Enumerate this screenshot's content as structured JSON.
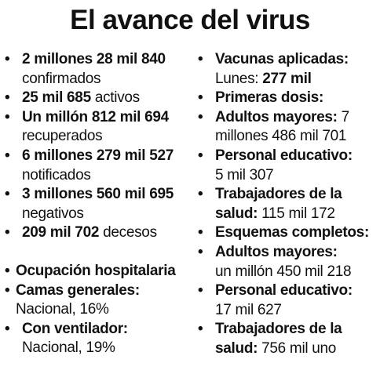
{
  "title": "El avance del virus",
  "left": {
    "stats": [
      {
        "bold": "2 millones 28 mil 840",
        "text": " confirmados"
      },
      {
        "bold": "25 mil 685",
        "text": " activos"
      },
      {
        "bold": "Un millón 812 mil 694",
        "text": " recuperados"
      },
      {
        "bold": "6 millones 279 mil 527",
        "text": " notificados"
      },
      {
        "bold": "3 millones 560 mil 695",
        "text": " negativos"
      },
      {
        "bold": "209 mil 702",
        "text": " decesos"
      }
    ],
    "occupancy": {
      "heading": "Ocupación hospitalaria",
      "general_beds_label": "Camas generales:",
      "general_beds_value": "Nacional, 16%",
      "ventilator_label": "Con ventilador:",
      "ventilator_value": "Nacional, 19%"
    }
  },
  "right": {
    "applied_label": "Vacunas aplicadas:",
    "applied_day": "Lunes: ",
    "applied_value": "277 mil",
    "first_doses_heading": "Primeras dosis:",
    "first_doses": [
      {
        "label": "Adultos mayores:",
        "value": " 7 millones 486 mil 701"
      },
      {
        "label": "Personal educativo:",
        "value": " 5 mil 307"
      },
      {
        "label": "Trabajadores de la salud:",
        "value": " 115 mil 172"
      }
    ],
    "complete_heading": "Esquemas completos:",
    "complete": [
      {
        "label": "Adultos mayores:",
        "value": " un millón 450 mil 218"
      },
      {
        "label": "Personal educativo:",
        "value": " 17 mil 627"
      },
      {
        "label": "Trabajadores de la salud:",
        "value": " 756 mil uno"
      }
    ]
  },
  "bullet_glyph": "•"
}
